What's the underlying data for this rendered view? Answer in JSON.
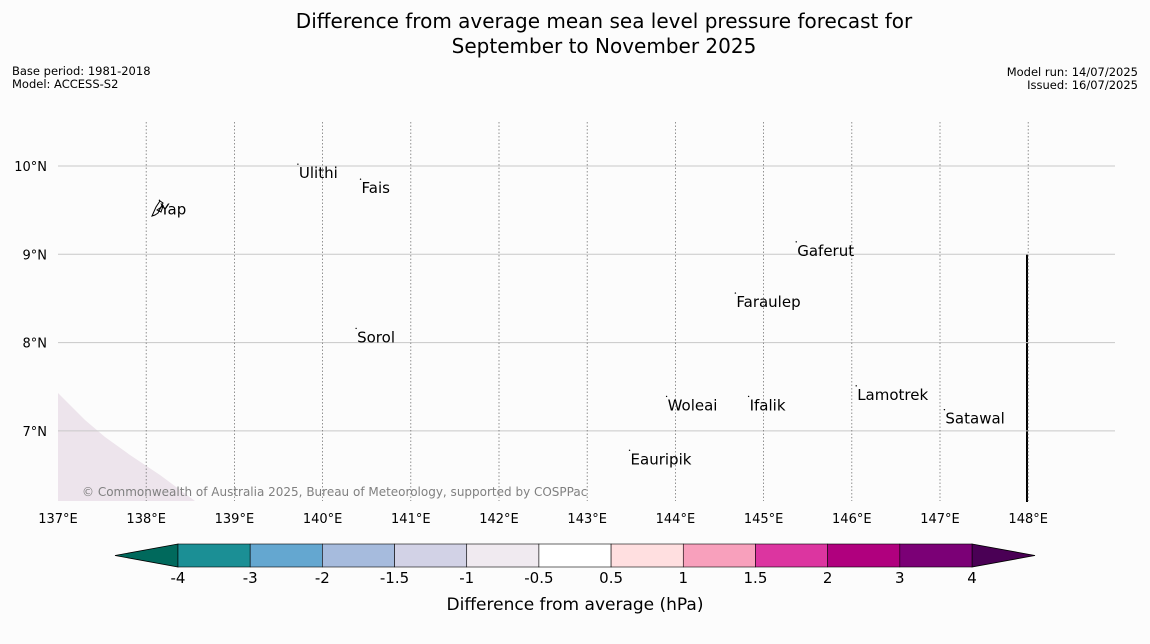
{
  "title": {
    "line1": "Difference from average mean sea level pressure forecast for",
    "line2": "September to November 2025"
  },
  "meta": {
    "base_period": "Base period: 1981-2018",
    "model": "Model: ACCESS-S2",
    "model_run": "Model run: 14/07/2025",
    "issued": "Issued: 16/07/2025"
  },
  "map": {
    "lon_range": [
      137,
      148.9
    ],
    "lat_range": [
      6.2,
      10.5
    ],
    "lon_ticks": [
      {
        "value": 137,
        "label": "137°E"
      },
      {
        "value": 138,
        "label": "138°E"
      },
      {
        "value": 139,
        "label": "139°E"
      },
      {
        "value": 140,
        "label": "140°E"
      },
      {
        "value": 141,
        "label": "141°E"
      },
      {
        "value": 142,
        "label": "142°E"
      },
      {
        "value": 143,
        "label": "143°E"
      },
      {
        "value": 144,
        "label": "144°E"
      },
      {
        "value": 145,
        "label": "145°E"
      },
      {
        "value": 146,
        "label": "146°E"
      },
      {
        "value": 147,
        "label": "147°E"
      },
      {
        "value": 148,
        "label": "148°E"
      }
    ],
    "lat_ticks": [
      {
        "value": 10,
        "label": "10°N"
      },
      {
        "value": 9,
        "label": "9°N"
      },
      {
        "value": 8,
        "label": "8°N"
      },
      {
        "value": 7,
        "label": "7°N"
      }
    ],
    "places": [
      {
        "name": "Yap",
        "lon": 138.15,
        "lat": 9.52
      },
      {
        "name": "Ulithi",
        "lon": 139.72,
        "lat": 9.93
      },
      {
        "name": "Fais",
        "lon": 140.43,
        "lat": 9.76
      },
      {
        "name": "Gaferut",
        "lon": 145.37,
        "lat": 9.05
      },
      {
        "name": "Faraulep",
        "lon": 144.68,
        "lat": 8.47
      },
      {
        "name": "Sorol",
        "lon": 140.38,
        "lat": 8.07
      },
      {
        "name": "Lamotrek",
        "lon": 146.05,
        "lat": 7.42
      },
      {
        "name": "Woleai",
        "lon": 143.9,
        "lat": 7.3
      },
      {
        "name": "Ifalik",
        "lon": 144.83,
        "lat": 7.3
      },
      {
        "name": "Satawal",
        "lon": 147.05,
        "lat": 7.15
      },
      {
        "name": "Eauripik",
        "lon": 143.48,
        "lat": 6.69
      }
    ],
    "copyright": "© Commonwealth of Australia 2025, Bureau of Meteorology, supported by COSPPac"
  },
  "colorbar": {
    "title": "Difference from average (hPa)",
    "levels": [
      "-4",
      "-3",
      "-2",
      "-1.5",
      "-1",
      "-0.5",
      "0.5",
      "1",
      "1.5",
      "2",
      "3",
      "4"
    ],
    "under_color": "#00695c",
    "over_color": "#4a0055",
    "colors": [
      "#1b8f95",
      "#64a7d0",
      "#a6bbdd",
      "#d2d2e6",
      "#f0eaf0",
      "#ffffff",
      "#ffdfe0",
      "#f8a0bc",
      "#dc35a0",
      "#b0007e",
      "#7b0076"
    ]
  }
}
